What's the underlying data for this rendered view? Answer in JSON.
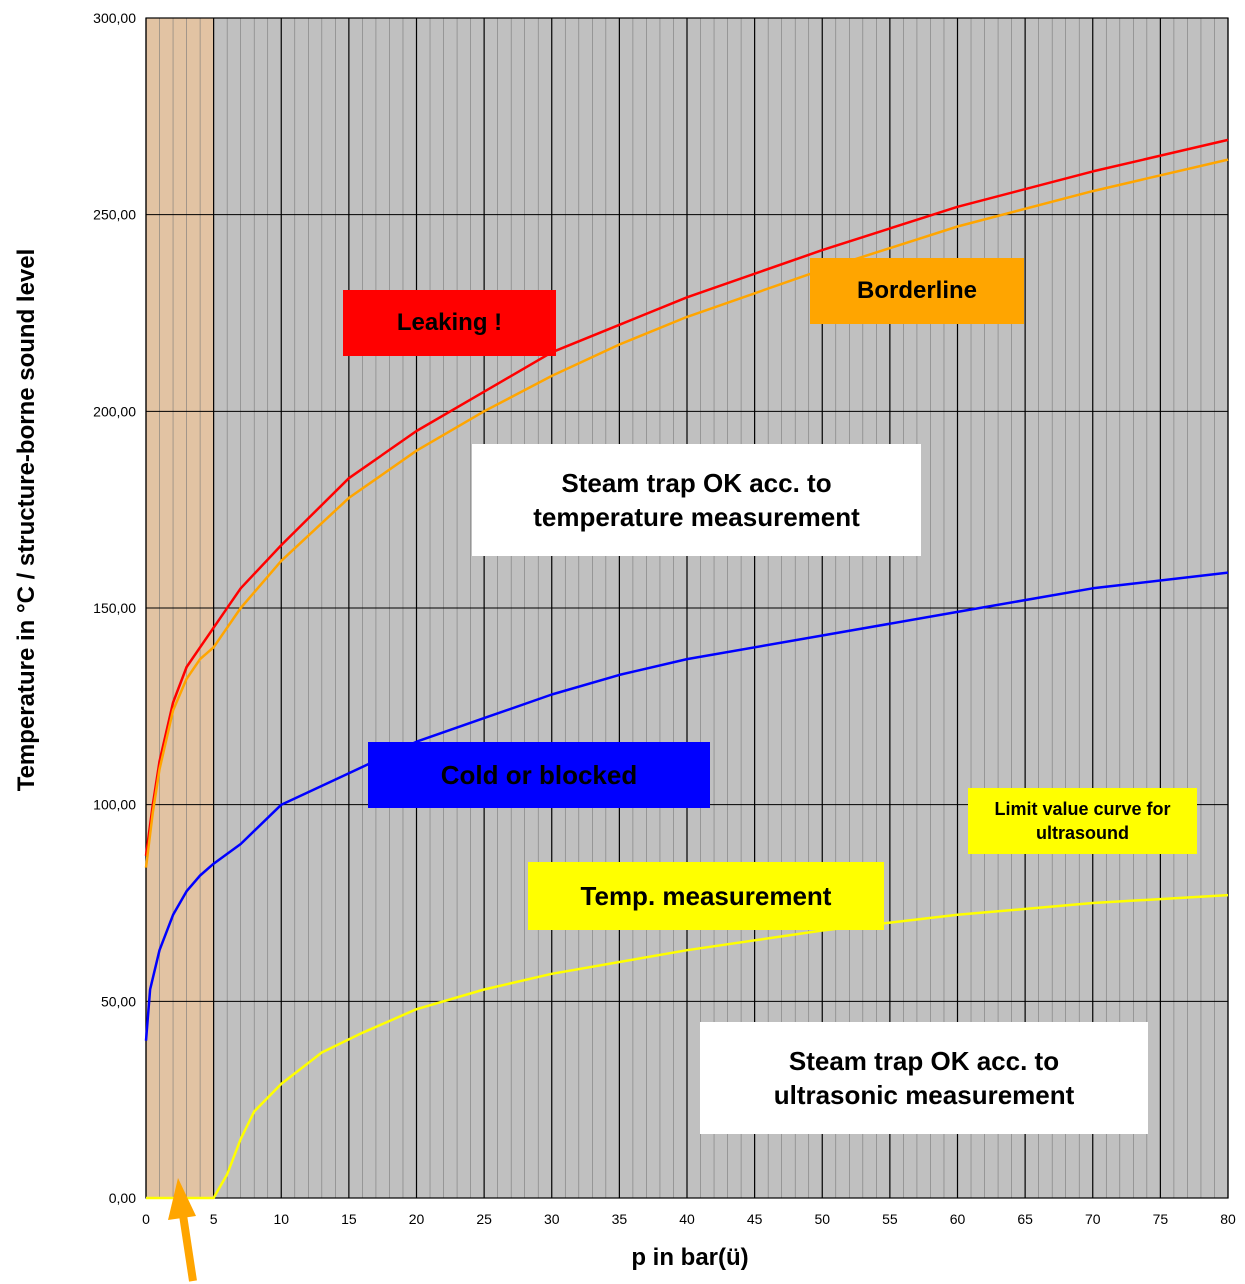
{
  "chart_data": {
    "type": "line",
    "xlabel": "p in bar(ü)",
    "ylabel": "Temperature in °C / structure-borne sound level",
    "xlim": [
      0,
      80
    ],
    "ylim": [
      0,
      300
    ],
    "x_ticks": [
      "0",
      "5",
      "10",
      "15",
      "20",
      "25",
      "30",
      "35",
      "40",
      "45",
      "50",
      "55",
      "60",
      "65",
      "70",
      "75",
      "80"
    ],
    "y_ticks": [
      "0,00",
      "50,00",
      "100,00",
      "150,00",
      "200,00",
      "250,00",
      "300,00"
    ],
    "grid": true,
    "shaded_region": {
      "x": [
        0,
        5
      ],
      "color": "#e2c3a3"
    },
    "series": [
      {
        "color": "#ff0000",
        "x": [
          0,
          0.5,
          1,
          2,
          3,
          4,
          5,
          7,
          10,
          15,
          20,
          25,
          30,
          35,
          40,
          50,
          60,
          70,
          80
        ],
        "values": [
          87,
          100,
          111,
          126,
          135,
          140,
          145,
          155,
          166,
          183,
          195,
          205,
          215,
          222,
          229,
          241,
          252,
          261,
          269
        ]
      },
      {
        "color": "#ffa500",
        "x": [
          0,
          0.5,
          1,
          2,
          3,
          4,
          5,
          7,
          10,
          15,
          20,
          25,
          30,
          35,
          40,
          50,
          60,
          70,
          80
        ],
        "values": [
          84,
          98,
          109,
          124,
          132,
          137,
          140,
          150,
          162,
          178,
          190,
          200,
          209,
          217,
          224,
          236,
          247,
          256,
          264
        ]
      },
      {
        "color": "#0000ff",
        "x": [
          0,
          0.3,
          1,
          2,
          3,
          4,
          5,
          7,
          10,
          15,
          20,
          25,
          30,
          35,
          40,
          50,
          60,
          70,
          80
        ],
        "values": [
          40,
          53,
          63,
          72,
          78,
          82,
          85,
          90,
          100,
          108,
          116,
          122,
          128,
          133,
          137,
          143,
          149,
          155,
          159
        ]
      },
      {
        "color": "#ffff00",
        "x": [
          0,
          4.5,
          5,
          6,
          7,
          8,
          10,
          13,
          16,
          20,
          25,
          30,
          35,
          40,
          50,
          60,
          70,
          80
        ],
        "values": [
          0,
          0,
          0,
          6,
          15,
          22,
          29,
          37,
          42,
          48,
          53,
          57,
          60,
          63,
          68,
          72,
          75,
          77
        ]
      }
    ],
    "annotations": [
      {
        "text": "Leaking !",
        "bg": "#ff0000"
      },
      {
        "text": "Borderline",
        "bg": "#ffa500"
      },
      {
        "text": "Steam trap OK acc. to temperature measurement",
        "bg": "#ffffff"
      },
      {
        "text": "Cold or blocked",
        "bg": "#0000ff"
      },
      {
        "text": "Limit value curve for ultrasound",
        "bg": "#ffff00"
      },
      {
        "text": "Temp. measurement",
        "bg": "#ffff00"
      },
      {
        "text": "Steam trap OK acc. to ultrasonic measurement",
        "bg": "#ffffff"
      }
    ],
    "arrow_color": "#ffa500"
  }
}
